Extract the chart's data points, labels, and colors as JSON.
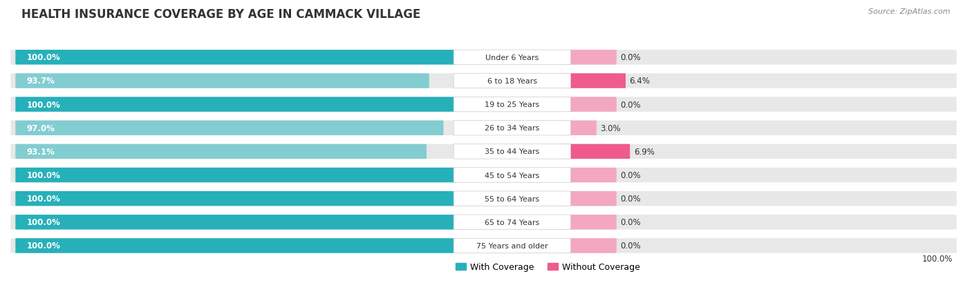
{
  "title": "HEALTH INSURANCE COVERAGE BY AGE IN CAMMACK VILLAGE",
  "source": "Source: ZipAtlas.com",
  "categories": [
    "Under 6 Years",
    "6 to 18 Years",
    "19 to 25 Years",
    "26 to 34 Years",
    "35 to 44 Years",
    "45 to 54 Years",
    "55 to 64 Years",
    "65 to 74 Years",
    "75 Years and older"
  ],
  "with_coverage": [
    100.0,
    93.7,
    100.0,
    97.0,
    93.1,
    100.0,
    100.0,
    100.0,
    100.0
  ],
  "without_coverage": [
    0.0,
    6.4,
    0.0,
    3.0,
    6.9,
    0.0,
    0.0,
    0.0,
    0.0
  ],
  "color_with_dark": "#26b0ba",
  "color_with_light": "#82cdd1",
  "color_without_dark": "#ef5b8c",
  "color_without_light": "#f4a7c0",
  "row_bg_color": "#e8e8e8",
  "row_bg_color_alt": "#f2f2f2",
  "title_fontsize": 12,
  "label_fontsize": 8.5,
  "legend_fontsize": 9,
  "source_fontsize": 8
}
